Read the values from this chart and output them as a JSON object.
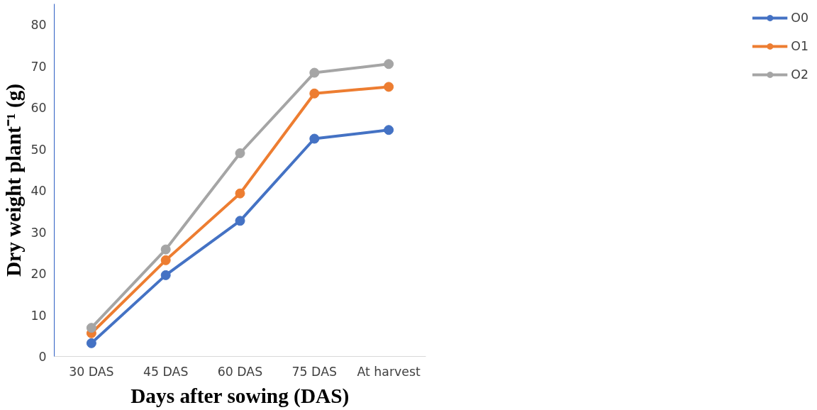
{
  "chart_data": {
    "type": "line",
    "xlabel": "Days after sowing (DAS)",
    "ylabel": "Dry weight plant⁻¹ (g)",
    "categories": [
      "30 DAS",
      "45 DAS",
      "60 DAS",
      "75 DAS",
      "At harvest"
    ],
    "series": [
      {
        "name": "O0",
        "color": "#4472c4",
        "values": [
          3.2,
          19.6,
          32.7,
          52.5,
          54.6
        ]
      },
      {
        "name": "O1",
        "color": "#ed7d31",
        "values": [
          5.6,
          23.2,
          39.3,
          63.4,
          65.0
        ]
      },
      {
        "name": "O2",
        "color": "#a5a5a5",
        "values": [
          6.9,
          25.8,
          49.0,
          68.4,
          70.5
        ]
      }
    ],
    "ylim": [
      0,
      85
    ],
    "yticks": [
      0,
      10,
      20,
      30,
      40,
      50,
      60,
      70,
      80
    ],
    "grid": false,
    "legend": "right",
    "marker": "circle",
    "line_style": "solid"
  }
}
